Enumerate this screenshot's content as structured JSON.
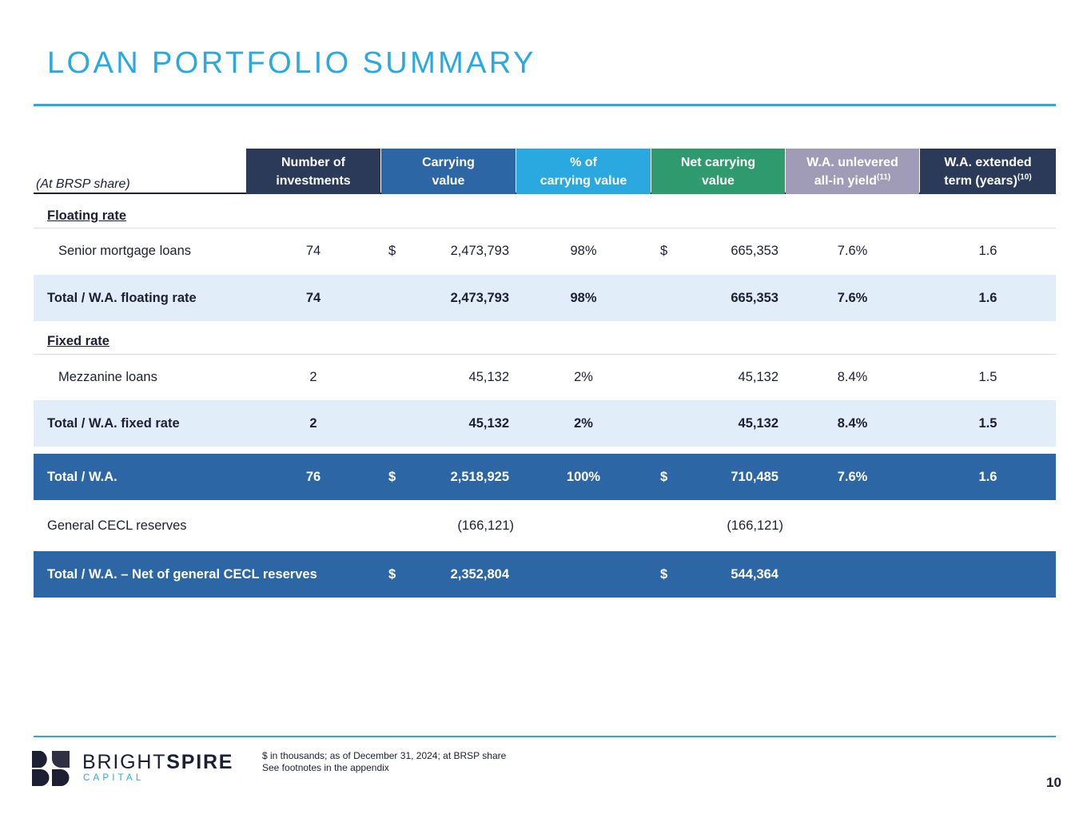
{
  "page": {
    "title": "LOAN PORTFOLIO SUMMARY",
    "page_number": "10"
  },
  "colors": {
    "accent": "#29a9e0",
    "navy": "#2b3a59",
    "blue": "#2d66a5",
    "sky": "#29a9e0",
    "green": "#2e9a6d",
    "lavender": "#a09cb8",
    "light_row": "#e1edf8"
  },
  "table": {
    "share_label": "(At BRSP share)",
    "headers": {
      "investments": {
        "line1": "Number of",
        "line2": "investments"
      },
      "carrying": {
        "line1": "Carrying",
        "line2": "value"
      },
      "pct": {
        "line1": "% of",
        "line2": "carrying value"
      },
      "net": {
        "line1": "Net carrying",
        "line2": "value"
      },
      "yield": {
        "line1": "W.A. unlevered",
        "line2": "all-in yield",
        "footnote": "(11)"
      },
      "term": {
        "line1": "W.A. extended",
        "line2": "term (years)",
        "footnote": "(10)"
      }
    },
    "floating_label": "Floating rate",
    "fixed_label": "Fixed rate",
    "rows": {
      "senior": {
        "label": "Senior mortgage loans",
        "count": "74",
        "dollar1": "$",
        "carrying": "2,473,793",
        "pct": "98%",
        "dollar2": "$",
        "net": "665,353",
        "yield": "7.6%",
        "term": "1.6"
      },
      "total_floating": {
        "label": "Total / W.A. floating rate",
        "count": "74",
        "carrying": "2,473,793",
        "pct": "98%",
        "net": "665,353",
        "yield": "7.6%",
        "term": "1.6"
      },
      "mezz": {
        "label": "Mezzanine loans",
        "count": "2",
        "carrying": "45,132",
        "pct": "2%",
        "net": "45,132",
        "yield": "8.4%",
        "term": "1.5"
      },
      "total_fixed": {
        "label": "Total / W.A. fixed rate",
        "count": "2",
        "carrying": "45,132",
        "pct": "2%",
        "net": "45,132",
        "yield": "8.4%",
        "term": "1.5"
      },
      "total": {
        "label": "Total / W.A.",
        "count": "76",
        "dollar1": "$",
        "carrying": "2,518,925",
        "pct": "100%",
        "dollar2": "$",
        "net": "710,485",
        "yield": "7.6%",
        "term": "1.6"
      },
      "cecl": {
        "label": "General CECL reserves",
        "carrying": "(166,121)",
        "net": "(166,121)"
      },
      "net_total": {
        "label": "Total / W.A. – Net of general CECL reserves",
        "dollar1": "$",
        "carrying": "2,352,804",
        "dollar2": "$",
        "net": "544,364"
      }
    }
  },
  "footer": {
    "brand_light": "BRIGHT",
    "brand_bold": "SPIRE",
    "brand_sub": "CAPITAL",
    "note1": "$ in thousands; as of December 31, 2024; at BRSP share",
    "note2": "See footnotes in the appendix"
  }
}
